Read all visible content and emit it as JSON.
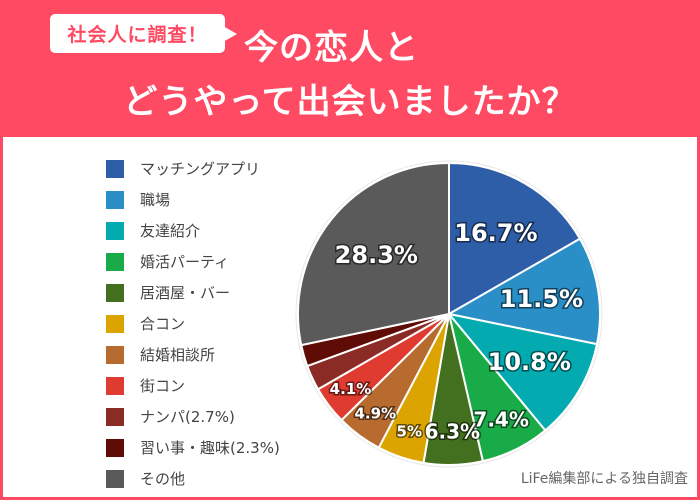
{
  "header": {
    "badge": "社会人に調査！",
    "title_line1": "今の恋人と",
    "title_line2": "どうやって出会いましたか？",
    "background_color": "#ff4a63"
  },
  "credit": "LiFe編集部による独自調査",
  "legend": [
    {
      "label": "マッチングアプリ",
      "color": "#2f5ea9"
    },
    {
      "label": "職場",
      "color": "#2a8fc7"
    },
    {
      "label": "友達紹介",
      "color": "#03aaaf"
    },
    {
      "label": "婚活パーティ",
      "color": "#19ab47"
    },
    {
      "label": "居酒屋・バー",
      "color": "#43701e"
    },
    {
      "label": "合コン",
      "color": "#dca400"
    },
    {
      "label": "結婚相談所",
      "color": "#b86b2f"
    },
    {
      "label": "街コン",
      "color": "#e03b30"
    },
    {
      "label": "ナンパ(2.7%)",
      "color": "#8b2b26"
    },
    {
      "label": "習い事・趣味(2.3%)",
      "color": "#5f0b06"
    },
    {
      "label": "その他",
      "color": "#5a5a5a"
    }
  ],
  "chart_data": {
    "type": "pie",
    "title": "今の恋人とどうやって出会いましたか？",
    "subtitle": "社会人に調査！",
    "categories": [
      "マッチングアプリ",
      "職場",
      "友達紹介",
      "婚活パーティ",
      "居酒屋・バー",
      "合コン",
      "結婚相談所",
      "街コン",
      "ナンパ",
      "習い事・趣味",
      "その他"
    ],
    "values": [
      16.7,
      11.5,
      10.8,
      7.4,
      6.3,
      5,
      4.9,
      4.1,
      2.7,
      2.3,
      28.3
    ],
    "labels": [
      "16.7%",
      "11.5%",
      "10.8%",
      "7.4%",
      "6.3%",
      "5%",
      "4.9%",
      "4.1%",
      "",
      "",
      "28.3%"
    ],
    "colors": [
      "#2f5ea9",
      "#2a8fc7",
      "#03aaaf",
      "#19ab47",
      "#43701e",
      "#dca400",
      "#b86b2f",
      "#e03b30",
      "#8b2b26",
      "#5f0b06",
      "#5a5a5a"
    ],
    "start_angle": "12 o'clock, clockwise",
    "legend_position": "left",
    "unit": "%",
    "source": "LiFe編集部による独自調査"
  }
}
